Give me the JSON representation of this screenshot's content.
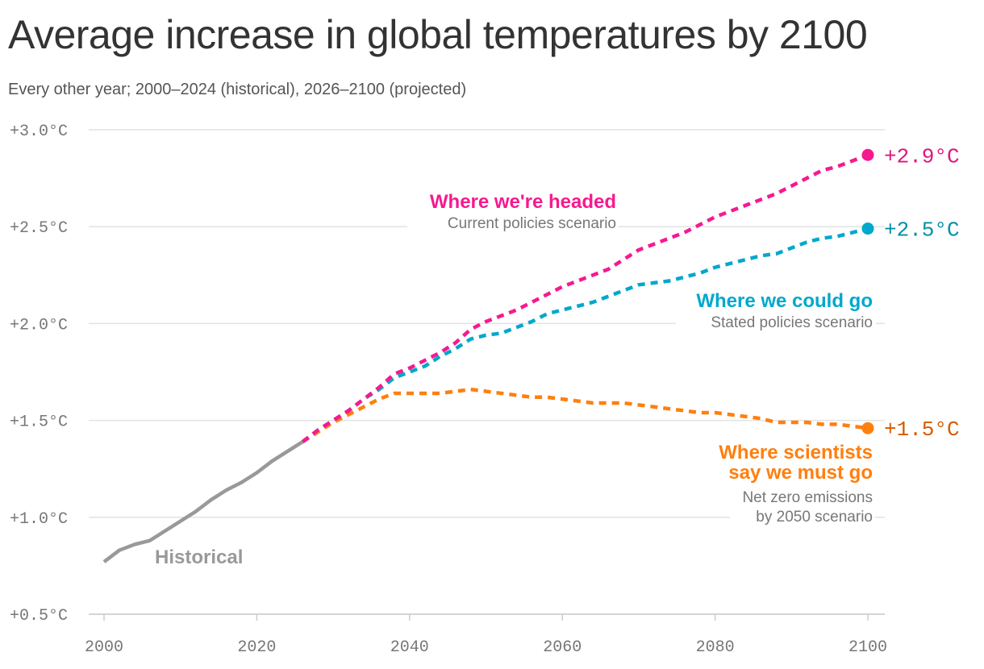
{
  "title": "Average increase in global temperatures by 2100",
  "subtitle": "Every other year; 2000–2024 (historical), 2026–2100 (projected)",
  "chart_data": {
    "type": "line",
    "title": "Average increase in global temperatures by 2100",
    "subtitle": "Every other year; 2000–2024 (historical), 2026–2100 (projected)",
    "xlim": [
      2000,
      2100
    ],
    "ylim": [
      0.5,
      3.0
    ],
    "x_ticks": [
      2000,
      2020,
      2040,
      2060,
      2080,
      2100
    ],
    "x_tick_labels": [
      "2000",
      "2020",
      "2040",
      "2060",
      "2080",
      "2100"
    ],
    "y_ticks": [
      0.5,
      1.0,
      1.5,
      2.0,
      2.5,
      3.0
    ],
    "y_tick_labels": [
      "+0.5°C",
      "+1.0°C",
      "+1.5°C",
      "+2.0°C",
      "+2.5°C",
      "+3.0°C"
    ],
    "grid": "horizontal",
    "series": [
      {
        "name": "Historical",
        "label": "Historical",
        "color": "#999999",
        "style": "solid",
        "x": [
          2000,
          2002,
          2004,
          2006,
          2008,
          2010,
          2012,
          2014,
          2016,
          2018,
          2020,
          2022,
          2024,
          2026
        ],
        "y": [
          0.77,
          0.83,
          0.86,
          0.88,
          0.93,
          0.98,
          1.03,
          1.09,
          1.14,
          1.18,
          1.23,
          1.29,
          1.34,
          1.39
        ]
      },
      {
        "name": "Where we're headed",
        "sublabel": "Current policies scenario",
        "end_label": "+2.9°C",
        "color": "#f7198f",
        "end_color": "#e0157c",
        "style": "dashed",
        "x": [
          2026,
          2028,
          2030,
          2032,
          2034,
          2036,
          2038,
          2040,
          2042,
          2044,
          2046,
          2048,
          2050,
          2052,
          2054,
          2056,
          2058,
          2060,
          2062,
          2064,
          2066,
          2068,
          2070,
          2072,
          2074,
          2076,
          2078,
          2080,
          2082,
          2084,
          2086,
          2088,
          2090,
          2092,
          2094,
          2096,
          2098,
          2100
        ],
        "y": [
          1.39,
          1.45,
          1.5,
          1.55,
          1.61,
          1.67,
          1.74,
          1.77,
          1.81,
          1.85,
          1.9,
          1.97,
          2.01,
          2.04,
          2.07,
          2.11,
          2.15,
          2.19,
          2.22,
          2.25,
          2.28,
          2.33,
          2.38,
          2.41,
          2.44,
          2.47,
          2.51,
          2.55,
          2.58,
          2.61,
          2.64,
          2.67,
          2.71,
          2.75,
          2.79,
          2.81,
          2.84,
          2.87
        ]
      },
      {
        "name": "Where we could go",
        "sublabel": "Stated policies scenario",
        "end_label": "+2.5°C",
        "color": "#00a8cc",
        "end_color": "#008fa8",
        "style": "dashed",
        "x": [
          2026,
          2028,
          2030,
          2032,
          2034,
          2036,
          2038,
          2040,
          2042,
          2044,
          2046,
          2048,
          2050,
          2052,
          2054,
          2056,
          2058,
          2060,
          2062,
          2064,
          2066,
          2068,
          2070,
          2072,
          2074,
          2076,
          2078,
          2080,
          2082,
          2084,
          2086,
          2088,
          2090,
          2092,
          2094,
          2096,
          2098,
          2100
        ],
        "y": [
          1.39,
          1.45,
          1.5,
          1.55,
          1.61,
          1.66,
          1.72,
          1.75,
          1.78,
          1.83,
          1.87,
          1.92,
          1.94,
          1.95,
          1.98,
          2.01,
          2.05,
          2.07,
          2.09,
          2.11,
          2.14,
          2.17,
          2.2,
          2.21,
          2.22,
          2.24,
          2.26,
          2.29,
          2.31,
          2.33,
          2.35,
          2.36,
          2.39,
          2.42,
          2.44,
          2.45,
          2.47,
          2.49
        ]
      },
      {
        "name": "Where scientists say we must go",
        "sublabel": "Net zero emissions by 2050 scenario",
        "end_label": "+1.5°C",
        "color": "#ff7f0e",
        "end_color": "#d65a00",
        "style": "dashed",
        "x": [
          2026,
          2028,
          2030,
          2032,
          2034,
          2036,
          2038,
          2040,
          2042,
          2044,
          2046,
          2048,
          2050,
          2052,
          2054,
          2056,
          2058,
          2060,
          2062,
          2064,
          2066,
          2068,
          2070,
          2072,
          2074,
          2076,
          2078,
          2080,
          2082,
          2084,
          2086,
          2088,
          2090,
          2092,
          2094,
          2096,
          2098,
          2100
        ],
        "y": [
          1.39,
          1.44,
          1.49,
          1.53,
          1.57,
          1.61,
          1.64,
          1.64,
          1.64,
          1.64,
          1.65,
          1.66,
          1.65,
          1.64,
          1.63,
          1.62,
          1.62,
          1.61,
          1.6,
          1.59,
          1.59,
          1.59,
          1.58,
          1.57,
          1.56,
          1.55,
          1.54,
          1.54,
          1.53,
          1.52,
          1.51,
          1.49,
          1.49,
          1.49,
          1.48,
          1.48,
          1.47,
          1.46
        ]
      }
    ]
  },
  "labels": {
    "historical": "Historical",
    "headed_title": "Where we're headed",
    "headed_sub": "Current policies scenario",
    "could_title": "Where we could go",
    "could_sub": "Stated policies scenario",
    "must_title_1": "Where scientists",
    "must_title_2": "say we must go",
    "must_sub_1": "Net zero emissions",
    "must_sub_2": "by 2050 scenario"
  }
}
